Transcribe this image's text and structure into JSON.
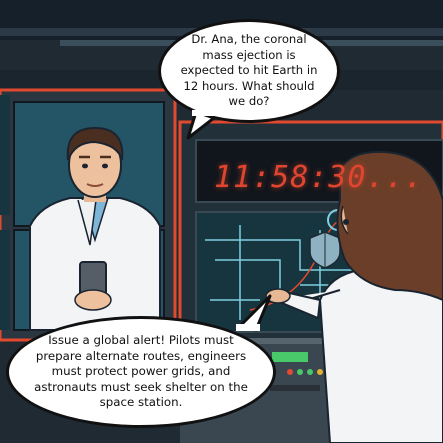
{
  "bubble_top": {
    "text": "Dr. Ana, the coronal mass ejection is expected to hit Earth in 12 hours. What should we do?"
  },
  "bubble_bottom": {
    "text": "Issue a global alert! Pilots must prepare alternate routes, engineers must protect power grids, and astronauts must seek shelter on the space station."
  },
  "countdown": {
    "text": "11:58:30..."
  },
  "colors": {
    "wall": "#1f2a33",
    "screen": "#17353f",
    "timer": "#e0452f",
    "labcoat": "#f2f4f6"
  }
}
